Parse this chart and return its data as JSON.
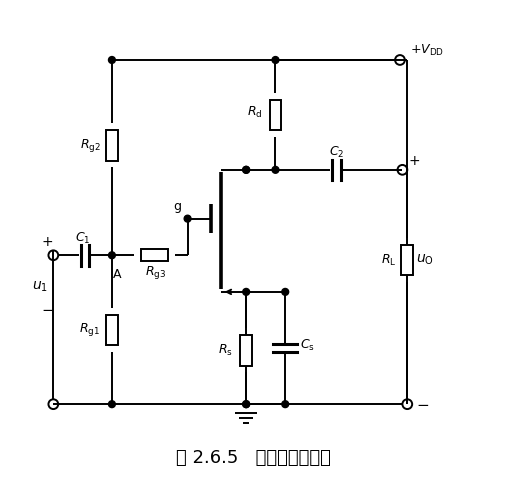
{
  "title": "图 2.6.5   分压式偏置电路",
  "title_fontsize": 13,
  "bg_color": "#ffffff",
  "line_color": "#000000",
  "fig_width": 5.07,
  "fig_height": 4.91,
  "dpi": 100
}
